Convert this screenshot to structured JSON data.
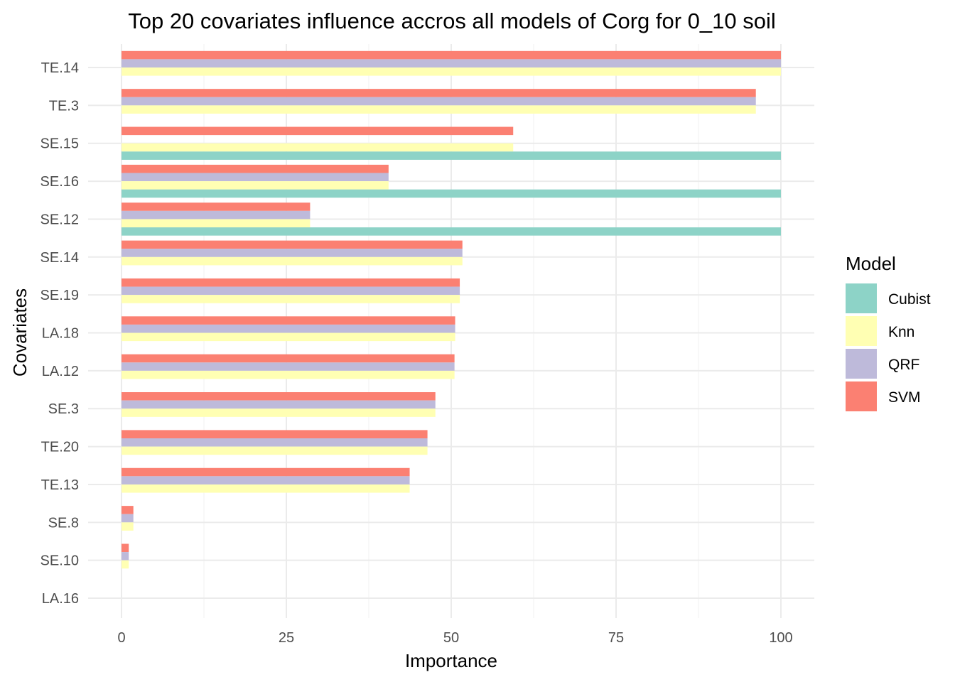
{
  "chart_data": {
    "type": "bar",
    "orientation": "horizontal",
    "title": "Top 20 covariates influence accros all models of Corg for 0_10 soil",
    "xlabel": "Importance",
    "ylabel": "Covariates",
    "xlim": [
      0,
      100
    ],
    "x_ticks": [
      "0",
      "25",
      "50",
      "75",
      "100"
    ],
    "grid": true,
    "legend_position": "right",
    "legend_title": "Model",
    "categories": [
      "TE.14",
      "TE.3",
      "SE.15",
      "SE.16",
      "SE.12",
      "SE.14",
      "SE.19",
      "LA.18",
      "LA.12",
      "SE.3",
      "TE.20",
      "TE.13",
      "SE.8",
      "SE.10",
      "LA.16"
    ],
    "series": [
      {
        "name": "SVM",
        "color": "#fb8072",
        "values": [
          100,
          96.2,
          59.4,
          40.5,
          28.6,
          51.7,
          51.3,
          50.6,
          50.5,
          47.6,
          46.4,
          43.7,
          1.8,
          1.1,
          null
        ]
      },
      {
        "name": "QRF",
        "color": "#bebada",
        "values": [
          100,
          96.2,
          null,
          40.5,
          28.6,
          51.7,
          51.3,
          50.6,
          50.5,
          47.6,
          46.4,
          43.7,
          1.8,
          1.1,
          null
        ]
      },
      {
        "name": "Knn",
        "color": "#ffffb3",
        "values": [
          100,
          96.2,
          59.4,
          40.5,
          28.6,
          51.7,
          51.3,
          50.6,
          50.5,
          47.6,
          46.4,
          43.7,
          1.8,
          1.1,
          null
        ]
      },
      {
        "name": "Cubist",
        "color": "#8dd3c7",
        "values": [
          null,
          null,
          100,
          100,
          100,
          null,
          null,
          null,
          null,
          null,
          null,
          null,
          null,
          null,
          null
        ]
      }
    ],
    "legend_order": [
      "Cubist",
      "Knn",
      "QRF",
      "SVM"
    ]
  }
}
